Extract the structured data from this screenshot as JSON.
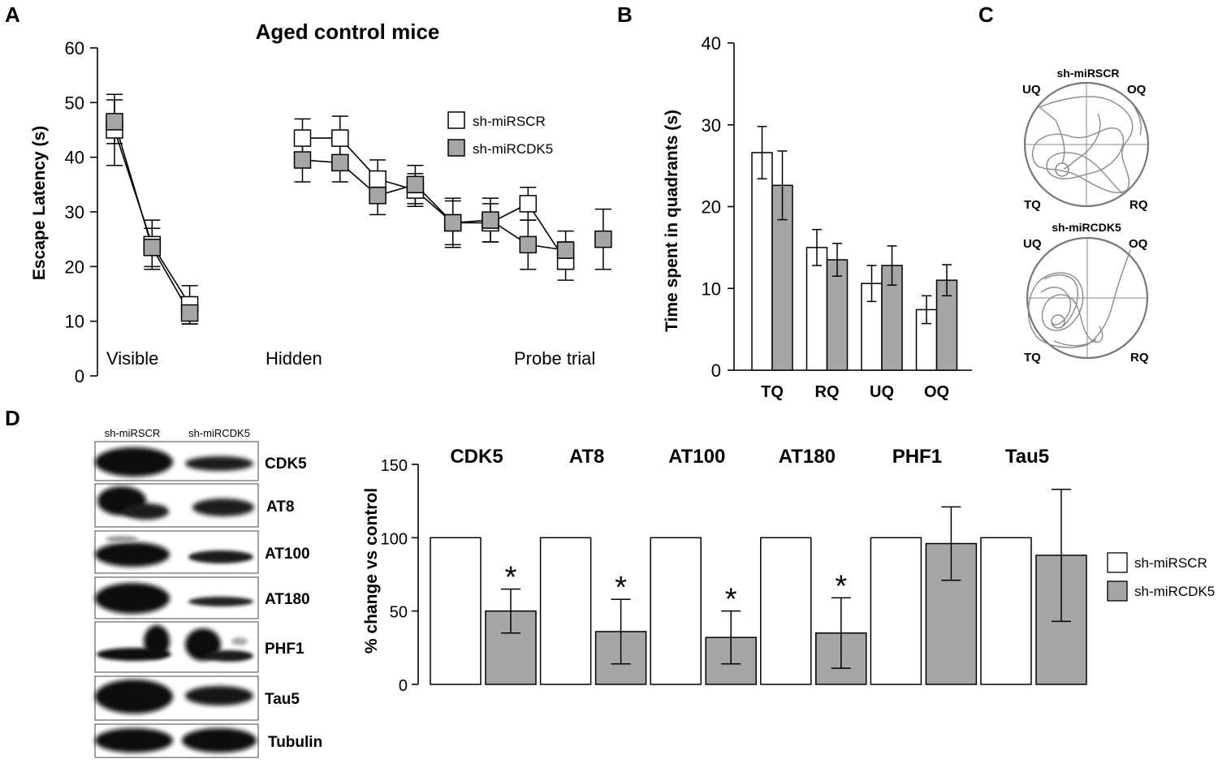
{
  "panels": {
    "A": "A",
    "B": "B",
    "C": "C",
    "D": "D"
  },
  "colors": {
    "control_fill": "#ffffff",
    "cdk5_fill": "#a6a6a6",
    "stroke": "#000000",
    "track": "#8a8a8a"
  },
  "chart_data": [
    {
      "id": "A",
      "type": "line",
      "title": "Aged control mice",
      "ylabel": "Escape Latency (s)",
      "ylim": [
        0,
        60
      ],
      "yticks": [
        0,
        10,
        20,
        30,
        40,
        50,
        60
      ],
      "phase_labels": [
        "Visible",
        "Hidden",
        "Probe trial"
      ],
      "legend": [
        "sh-miRSCR",
        "sh-miRCDK5"
      ],
      "series": [
        {
          "name": "sh-miRSCR",
          "segments": [
            {
              "x": [
                1,
                2,
                3
              ],
              "y": [
                45,
                24,
                13
              ],
              "err": [
                6.5,
                4.5,
                3.5
              ]
            },
            {
              "x": [
                6,
                7,
                8,
                9,
                10,
                11,
                12,
                13
              ],
              "y": [
                43.5,
                43.5,
                36,
                34,
                28,
                28,
                31.5,
                21
              ],
              "err": [
                3.5,
                4,
                3.5,
                3,
                4,
                3.5,
                3,
                3.5
              ]
            }
          ]
        },
        {
          "name": "sh-miRCDK5",
          "segments": [
            {
              "x": [
                1,
                2,
                3
              ],
              "y": [
                46.5,
                23.5,
                11.5
              ],
              "err": [
                4,
                3.5,
                2
              ]
            },
            {
              "x": [
                6,
                7,
                8,
                9,
                10,
                11,
                12,
                13
              ],
              "y": [
                39.5,
                39,
                33,
                35,
                28,
                28.5,
                24,
                23
              ],
              "err": [
                4,
                3.5,
                3.5,
                3.5,
                4.5,
                4,
                4.5,
                3.5
              ]
            },
            {
              "x": [
                14
              ],
              "y": [
                25
              ],
              "err": [
                5.5
              ]
            }
          ]
        }
      ]
    },
    {
      "id": "B",
      "type": "bar",
      "ylabel": "Time spent in  quadrants (s)",
      "ylim": [
        0,
        40
      ],
      "yticks": [
        0,
        10,
        20,
        30,
        40
      ],
      "categories": [
        "TQ",
        "RQ",
        "UQ",
        "OQ"
      ],
      "series": [
        {
          "name": "sh-miRSCR",
          "values": [
            26.6,
            15,
            10.6,
            7.4
          ],
          "err": [
            3.2,
            2.2,
            2.2,
            1.7
          ]
        },
        {
          "name": "sh-miRCDK5",
          "values": [
            22.6,
            13.5,
            12.8,
            11
          ],
          "err": [
            4.2,
            2,
            2.4,
            1.9
          ]
        }
      ]
    },
    {
      "id": "D",
      "type": "bar",
      "ylabel": "% change vs control",
      "ylim": [
        0,
        150
      ],
      "yticks": [
        0,
        50,
        100,
        150
      ],
      "categories": [
        "CDK5",
        "AT8",
        "AT100",
        "AT180",
        "PHF1",
        "Tau5"
      ],
      "legend": [
        "sh-miRSCR",
        "sh-miRCDK5"
      ],
      "series": [
        {
          "name": "sh-miRSCR",
          "values": [
            100,
            100,
            100,
            100,
            100,
            100
          ],
          "err": [
            0,
            0,
            0,
            0,
            0,
            0
          ]
        },
        {
          "name": "sh-miRCDK5",
          "values": [
            50,
            36,
            32,
            35,
            96,
            88
          ],
          "err": [
            15,
            22,
            18,
            24,
            25,
            45
          ]
        }
      ],
      "significance": [
        "*",
        "*",
        "*",
        "*",
        "",
        ""
      ]
    }
  ],
  "maze": {
    "groups": [
      {
        "title": "sh-miRSCR",
        "quadrants": {
          "top_left": "UQ",
          "top_right": "OQ",
          "bottom_left": "TQ",
          "bottom_right": "RQ"
        }
      },
      {
        "title": "sh-miRCDK5",
        "quadrants": {
          "top_left": "UQ",
          "top_right": "OQ",
          "bottom_left": "TQ",
          "bottom_right": "RQ"
        }
      }
    ]
  },
  "blot": {
    "lanes": [
      "sh-miRSCR",
      "sh-miRCDK5"
    ],
    "rows": [
      "CDK5",
      "AT8",
      "AT100",
      "AT180",
      "PHF1",
      "Tau5",
      "Tubulin"
    ]
  }
}
